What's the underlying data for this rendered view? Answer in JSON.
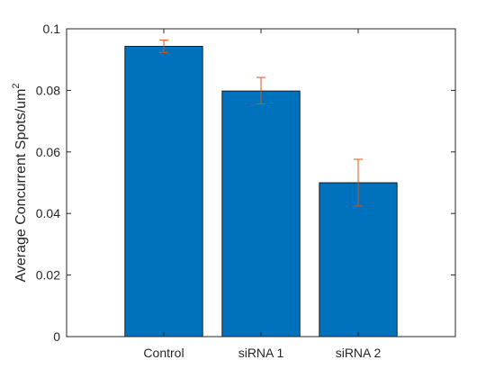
{
  "chart_data": {
    "type": "bar",
    "title": "",
    "xlabel": "",
    "ylabel": "Average Concurrent Spots/um",
    "ylabel_superscript": "2",
    "categories": [
      "Control",
      "siRNA 1",
      "siRNA 2"
    ],
    "values": [
      0.0943,
      0.0798,
      0.05
    ],
    "error_bars": [
      {
        "lower": 0.0923,
        "upper": 0.0963
      },
      {
        "lower": 0.0756,
        "upper": 0.0842
      },
      {
        "lower": 0.0424,
        "upper": 0.0576
      }
    ],
    "ylim": [
      0,
      0.1
    ],
    "yticks": [
      "0",
      "0.02",
      "0.04",
      "0.06",
      "0.08",
      "0.1"
    ],
    "ytick_values": [
      0,
      0.02,
      0.04,
      0.06,
      0.08,
      0.1
    ],
    "grid": false,
    "legend": "none",
    "bar_color": "#0072BD",
    "errorbar_color": "#D95319",
    "axis_color": "#262626"
  }
}
